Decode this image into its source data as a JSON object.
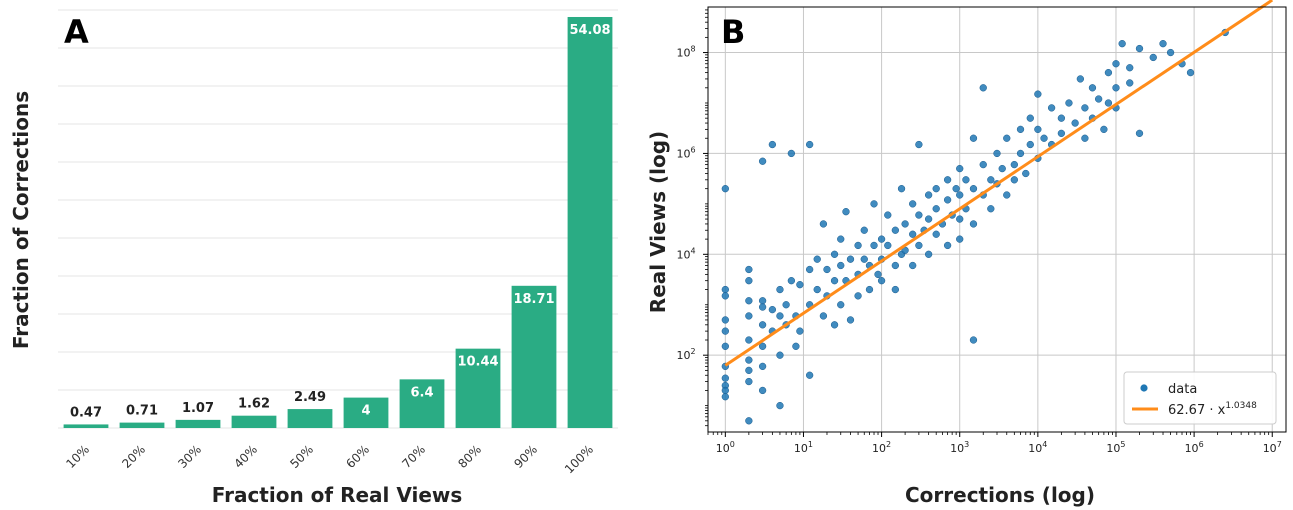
{
  "chart_data": [
    {
      "panel": "A",
      "type": "bar",
      "xlabel": "Fraction of Real Views",
      "ylabel": "Fraction of Corrections",
      "categories": [
        "10%",
        "20%",
        "30%",
        "40%",
        "50%",
        "60%",
        "70%",
        "80%",
        "90%",
        "100%"
      ],
      "values": [
        0.47,
        0.71,
        1.07,
        1.62,
        2.49,
        4,
        6.4,
        10.44,
        18.71,
        54.08
      ],
      "value_labels": [
        "0.47",
        "0.71",
        "1.07",
        "1.62",
        "2.49",
        "4",
        "6.4",
        "10.44",
        "18.71",
        "54.08"
      ],
      "ylim": [
        0,
        55
      ],
      "grid": true,
      "color": "#2aac84"
    },
    {
      "panel": "B",
      "type": "scatter",
      "xlabel": "Corrections (log)",
      "ylabel": "Real Views (log)",
      "xscale": "log",
      "yscale": "log",
      "xlim": [
        0.6,
        15000000
      ],
      "ylim": [
        3,
        800000000
      ],
      "xticks": [
        1,
        10,
        100,
        1000,
        10000,
        100000,
        1000000,
        10000000
      ],
      "xtick_labels": [
        {
          "b": "10",
          "e": "0"
        },
        {
          "b": "10",
          "e": "1"
        },
        {
          "b": "10",
          "e": "2"
        },
        {
          "b": "10",
          "e": "3"
        },
        {
          "b": "10",
          "e": "4"
        },
        {
          "b": "10",
          "e": "5"
        },
        {
          "b": "10",
          "e": "6"
        },
        {
          "b": "10",
          "e": "7"
        }
      ],
      "yticks": [
        100,
        10000,
        1000000,
        100000000
      ],
      "ytick_labels": [
        {
          "b": "10",
          "e": "2"
        },
        {
          "b": "10",
          "e": "4"
        },
        {
          "b": "10",
          "e": "6"
        },
        {
          "b": "10",
          "e": "8"
        }
      ],
      "grid": true,
      "legend_position": "bottom-right",
      "series": [
        {
          "name": "data",
          "kind": "points",
          "color": "#1f77b4",
          "points": [
            [
              1,
              200000
            ],
            [
              1,
              2000
            ],
            [
              1,
              1500
            ],
            [
              1,
              500
            ],
            [
              1,
              300
            ],
            [
              1,
              150
            ],
            [
              1,
              60
            ],
            [
              1,
              35
            ],
            [
              1,
              25
            ],
            [
              1,
              20
            ],
            [
              1,
              15
            ],
            [
              2,
              5000
            ],
            [
              2,
              3000
            ],
            [
              2,
              1200
            ],
            [
              2,
              600
            ],
            [
              2,
              200
            ],
            [
              2,
              80
            ],
            [
              2,
              50
            ],
            [
              2,
              30
            ],
            [
              2,
              5
            ],
            [
              3,
              1200
            ],
            [
              3,
              900
            ],
            [
              3,
              400
            ],
            [
              3,
              150
            ],
            [
              3,
              60
            ],
            [
              3,
              700000
            ],
            [
              3,
              20
            ],
            [
              4,
              1500000
            ],
            [
              4,
              800
            ],
            [
              4,
              300
            ],
            [
              5,
              2000
            ],
            [
              5,
              600
            ],
            [
              5,
              100
            ],
            [
              5,
              10
            ],
            [
              6,
              1000
            ],
            [
              6,
              400
            ],
            [
              7,
              1000000
            ],
            [
              7,
              3000
            ],
            [
              8,
              600
            ],
            [
              8,
              150
            ],
            [
              9,
              2500
            ],
            [
              9,
              300
            ],
            [
              12,
              1500000
            ],
            [
              12,
              5000
            ],
            [
              12,
              1000
            ],
            [
              12,
              40
            ],
            [
              15,
              8000
            ],
            [
              15,
              2000
            ],
            [
              18,
              40000
            ],
            [
              18,
              600
            ],
            [
              20,
              5000
            ],
            [
              20,
              1500
            ],
            [
              25,
              10000
            ],
            [
              25,
              3000
            ],
            [
              25,
              400
            ],
            [
              30,
              20000
            ],
            [
              30,
              6000
            ],
            [
              30,
              1000
            ],
            [
              35,
              70000
            ],
            [
              35,
              3000
            ],
            [
              40,
              8000
            ],
            [
              40,
              500
            ],
            [
              50,
              15000
            ],
            [
              50,
              4000
            ],
            [
              50,
              1500
            ],
            [
              60,
              30000
            ],
            [
              60,
              8000
            ],
            [
              70,
              6000
            ],
            [
              70,
              2000
            ],
            [
              80,
              100000
            ],
            [
              80,
              15000
            ],
            [
              90,
              4000
            ],
            [
              100,
              20000
            ],
            [
              100,
              8000
            ],
            [
              100,
              3000
            ],
            [
              120,
              60000
            ],
            [
              120,
              15000
            ],
            [
              150,
              30000
            ],
            [
              150,
              6000
            ],
            [
              150,
              2000
            ],
            [
              180,
              200000
            ],
            [
              180,
              10000
            ],
            [
              200,
              40000
            ],
            [
              200,
              12000
            ],
            [
              250,
              100000
            ],
            [
              250,
              25000
            ],
            [
              250,
              6000
            ],
            [
              300,
              1500000
            ],
            [
              300,
              60000
            ],
            [
              300,
              15000
            ],
            [
              350,
              30000
            ],
            [
              400,
              150000
            ],
            [
              400,
              50000
            ],
            [
              400,
              10000
            ],
            [
              500,
              200000
            ],
            [
              500,
              80000
            ],
            [
              500,
              25000
            ],
            [
              600,
              40000
            ],
            [
              700,
              300000
            ],
            [
              700,
              120000
            ],
            [
              700,
              15000
            ],
            [
              800,
              60000
            ],
            [
              900,
              200000
            ],
            [
              1000,
              500000
            ],
            [
              1000,
              150000
            ],
            [
              1000,
              50000
            ],
            [
              1000,
              20000
            ],
            [
              1200,
              300000
            ],
            [
              1200,
              80000
            ],
            [
              1500,
              2000000
            ],
            [
              1500,
              200000
            ],
            [
              1500,
              40000
            ],
            [
              1500,
              200
            ],
            [
              2000,
              20000000
            ],
            [
              2000,
              600000
            ],
            [
              2000,
              150000
            ],
            [
              2500,
              300000
            ],
            [
              2500,
              80000
            ],
            [
              3000,
              1000000
            ],
            [
              3000,
              250000
            ],
            [
              3500,
              500000
            ],
            [
              4000,
              2000000
            ],
            [
              4000,
              150000
            ],
            [
              5000,
              600000
            ],
            [
              5000,
              300000
            ],
            [
              6000,
              3000000
            ],
            [
              6000,
              1000000
            ],
            [
              7000,
              400000
            ],
            [
              8000,
              5000000
            ],
            [
              8000,
              1500000
            ],
            [
              10000,
              15000000
            ],
            [
              10000,
              3000000
            ],
            [
              10000,
              800000
            ],
            [
              12000,
              2000000
            ],
            [
              15000,
              8000000
            ],
            [
              15000,
              1500000
            ],
            [
              20000,
              5000000
            ],
            [
              20000,
              2500000
            ],
            [
              25000,
              10000000
            ],
            [
              30000,
              4000000
            ],
            [
              35000,
              30000000
            ],
            [
              40000,
              8000000
            ],
            [
              40000,
              2000000
            ],
            [
              50000,
              20000000
            ],
            [
              50000,
              5000000
            ],
            [
              60000,
              12000000
            ],
            [
              70000,
              3000000
            ],
            [
              80000,
              40000000
            ],
            [
              80000,
              10000000
            ],
            [
              100000,
              60000000
            ],
            [
              100000,
              20000000
            ],
            [
              100000,
              8000000
            ],
            [
              120000,
              150000000
            ],
            [
              150000,
              50000000
            ],
            [
              150000,
              25000000
            ],
            [
              200000,
              120000000
            ],
            [
              200000,
              2500000
            ],
            [
              300000,
              80000000
            ],
            [
              400000,
              150000000
            ],
            [
              500000,
              100000000
            ],
            [
              700000,
              60000000
            ],
            [
              900000,
              40000000
            ],
            [
              2500000,
              250000000
            ]
          ]
        },
        {
          "name": "62.67 · x",
          "name_exp": "1.0348",
          "kind": "fit",
          "color": "#ff8c1a",
          "coef": 62.67,
          "exponent": 1.0348,
          "x_range": [
            1,
            10000000
          ]
        }
      ]
    }
  ]
}
